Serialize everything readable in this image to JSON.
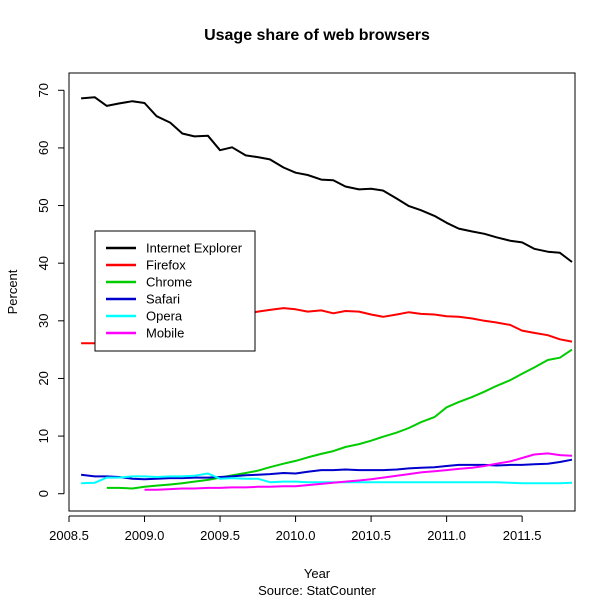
{
  "chart_data": {
    "type": "line",
    "title": "Usage share of web browsers",
    "xlabel": "Year",
    "ylabel": "Percent",
    "source": "Source: StatCounter",
    "xlim": [
      2008.5,
      2011.85
    ],
    "ylim": [
      -3,
      73
    ],
    "xticks": [
      2008.5,
      2009.0,
      2009.5,
      2010.0,
      2010.5,
      2011.0,
      2011.5
    ],
    "xtick_labels": [
      "2008.5",
      "2009.0",
      "2009.5",
      "2010.0",
      "2010.5",
      "2011.0",
      "2011.5"
    ],
    "yticks": [
      0,
      10,
      20,
      30,
      40,
      50,
      60,
      70
    ],
    "ytick_labels": [
      "0",
      "10",
      "20",
      "30",
      "40",
      "50",
      "60",
      "70"
    ],
    "grid": false,
    "legend_position": "left-middle",
    "series": [
      {
        "name": "Internet Explorer",
        "color": "#000000",
        "x": [
          2008.58,
          2008.67,
          2008.75,
          2008.83,
          2008.92,
          2009.0,
          2009.08,
          2009.17,
          2009.25,
          2009.33,
          2009.42,
          2009.5,
          2009.58,
          2009.67,
          2009.75,
          2009.83,
          2009.92,
          2010.0,
          2010.08,
          2010.17,
          2010.25,
          2010.33,
          2010.42,
          2010.5,
          2010.58,
          2010.67,
          2010.75,
          2010.83,
          2010.92,
          2011.0,
          2011.08,
          2011.17,
          2011.25,
          2011.33,
          2011.42,
          2011.5,
          2011.58,
          2011.67,
          2011.75,
          2011.83
        ],
        "y": [
          68.6,
          68.8,
          67.3,
          67.7,
          68.1,
          67.8,
          65.5,
          64.4,
          62.5,
          62.0,
          62.1,
          59.6,
          60.1,
          58.7,
          58.4,
          58.0,
          56.6,
          55.7,
          55.3,
          54.5,
          54.4,
          53.3,
          52.8,
          52.9,
          52.6,
          51.2,
          49.9,
          49.2,
          48.2,
          47.0,
          46.0,
          45.5,
          45.1,
          44.5,
          43.9,
          43.6,
          42.5,
          42.0,
          41.8,
          40.2
        ]
      },
      {
        "name": "Firefox",
        "color": "#ff0000",
        "x": [
          2008.58,
          2008.67,
          2008.75,
          2008.83,
          2008.92,
          2009.0,
          2009.08,
          2009.17,
          2009.25,
          2009.33,
          2009.42,
          2009.5,
          2009.58,
          2009.67,
          2009.75,
          2009.83,
          2009.92,
          2010.0,
          2010.08,
          2010.17,
          2010.25,
          2010.33,
          2010.42,
          2010.5,
          2010.58,
          2010.67,
          2010.75,
          2010.83,
          2010.92,
          2011.0,
          2011.08,
          2011.17,
          2011.25,
          2011.33,
          2011.42,
          2011.5,
          2011.58,
          2011.67,
          2011.75,
          2011.83
        ],
        "y": [
          26.1,
          26.1,
          26.8,
          27.0,
          27.2,
          27.7,
          28.2,
          29.0,
          29.4,
          29.7,
          30.2,
          30.5,
          30.8,
          31.2,
          31.6,
          31.9,
          32.2,
          32.0,
          31.6,
          31.8,
          31.3,
          31.7,
          31.6,
          31.1,
          30.7,
          31.1,
          31.5,
          31.2,
          31.1,
          30.8,
          30.7,
          30.4,
          30.0,
          29.7,
          29.3,
          28.3,
          27.9,
          27.5,
          26.8,
          26.4
        ]
      },
      {
        "name": "Chrome",
        "color": "#00cc00",
        "x": [
          2008.75,
          2008.83,
          2008.92,
          2009.0,
          2009.08,
          2009.17,
          2009.25,
          2009.33,
          2009.42,
          2009.5,
          2009.58,
          2009.67,
          2009.75,
          2009.83,
          2009.92,
          2010.0,
          2010.08,
          2010.17,
          2010.25,
          2010.33,
          2010.42,
          2010.5,
          2010.58,
          2010.67,
          2010.75,
          2010.83,
          2010.92,
          2011.0,
          2011.08,
          2011.17,
          2011.25,
          2011.33,
          2011.42,
          2011.5,
          2011.58,
          2011.67,
          2011.75,
          2011.83
        ],
        "y": [
          1.0,
          1.0,
          0.9,
          1.2,
          1.4,
          1.6,
          1.8,
          2.1,
          2.4,
          2.8,
          3.2,
          3.6,
          4.0,
          4.6,
          5.2,
          5.7,
          6.3,
          6.9,
          7.4,
          8.1,
          8.6,
          9.2,
          9.9,
          10.6,
          11.4,
          12.4,
          13.3,
          15.0,
          15.9,
          16.8,
          17.7,
          18.7,
          19.7,
          20.8,
          21.9,
          23.2,
          23.6,
          25.0
        ]
      },
      {
        "name": "Safari",
        "color": "#0000cc",
        "x": [
          2008.58,
          2008.67,
          2008.75,
          2008.83,
          2008.92,
          2009.0,
          2009.08,
          2009.17,
          2009.25,
          2009.33,
          2009.42,
          2009.5,
          2009.58,
          2009.67,
          2009.75,
          2009.83,
          2009.92,
          2010.0,
          2010.08,
          2010.17,
          2010.25,
          2010.33,
          2010.42,
          2010.5,
          2010.58,
          2010.67,
          2010.75,
          2010.83,
          2010.92,
          2011.0,
          2011.08,
          2011.17,
          2011.25,
          2011.33,
          2011.42,
          2011.5,
          2011.58,
          2011.67,
          2011.75,
          2011.83
        ],
        "y": [
          3.3,
          3.0,
          3.0,
          2.9,
          2.6,
          2.5,
          2.6,
          2.7,
          2.7,
          2.8,
          2.8,
          2.9,
          3.0,
          3.2,
          3.3,
          3.4,
          3.6,
          3.5,
          3.8,
          4.1,
          4.1,
          4.2,
          4.1,
          4.1,
          4.1,
          4.2,
          4.4,
          4.5,
          4.6,
          4.8,
          5.0,
          5.0,
          5.0,
          4.9,
          5.0,
          5.0,
          5.1,
          5.2,
          5.5,
          5.9
        ]
      },
      {
        "name": "Opera",
        "color": "#00ffff",
        "x": [
          2008.58,
          2008.67,
          2008.75,
          2008.83,
          2008.92,
          2009.0,
          2009.08,
          2009.17,
          2009.25,
          2009.33,
          2009.42,
          2009.5,
          2009.58,
          2009.67,
          2009.75,
          2009.83,
          2009.92,
          2010.0,
          2010.08,
          2010.17,
          2010.25,
          2010.33,
          2010.42,
          2010.5,
          2010.58,
          2010.67,
          2010.75,
          2010.83,
          2010.92,
          2011.0,
          2011.08,
          2011.17,
          2011.25,
          2011.33,
          2011.42,
          2011.5,
          2011.58,
          2011.67,
          2011.75,
          2011.83
        ],
        "y": [
          1.8,
          1.9,
          2.8,
          2.8,
          3.0,
          3.0,
          2.9,
          3.0,
          3.0,
          3.1,
          3.5,
          2.6,
          2.7,
          2.6,
          2.6,
          2.0,
          2.1,
          2.1,
          2.0,
          2.0,
          2.0,
          2.0,
          2.0,
          2.0,
          2.0,
          2.0,
          2.0,
          2.0,
          2.0,
          2.0,
          2.0,
          2.0,
          2.0,
          2.0,
          1.9,
          1.8,
          1.8,
          1.8,
          1.8,
          1.9
        ]
      },
      {
        "name": "Mobile",
        "color": "#ff00ff",
        "x": [
          2009.0,
          2009.08,
          2009.17,
          2009.25,
          2009.33,
          2009.42,
          2009.5,
          2009.58,
          2009.67,
          2009.75,
          2009.83,
          2009.92,
          2010.0,
          2010.08,
          2010.17,
          2010.25,
          2010.33,
          2010.42,
          2010.5,
          2010.58,
          2010.67,
          2010.75,
          2010.83,
          2010.92,
          2011.0,
          2011.08,
          2011.17,
          2011.25,
          2011.33,
          2011.42,
          2011.5,
          2011.58,
          2011.67,
          2011.75,
          2011.83
        ],
        "y": [
          0.7,
          0.7,
          0.8,
          0.9,
          0.9,
          1.0,
          1.0,
          1.1,
          1.1,
          1.2,
          1.2,
          1.3,
          1.3,
          1.5,
          1.7,
          1.9,
          2.1,
          2.3,
          2.5,
          2.8,
          3.1,
          3.4,
          3.7,
          3.9,
          4.1,
          4.3,
          4.5,
          4.8,
          5.2,
          5.6,
          6.2,
          6.8,
          7.0,
          6.7,
          6.6
        ]
      }
    ]
  }
}
